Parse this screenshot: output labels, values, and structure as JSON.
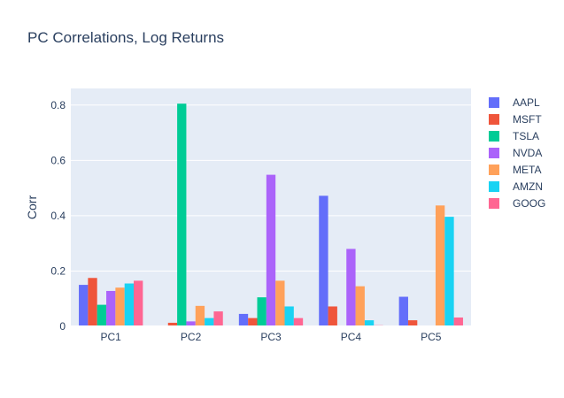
{
  "chart_data": {
    "type": "bar",
    "title": "PC Correlations, Log Returns",
    "xlabel": "",
    "ylabel": "Corr",
    "categories": [
      "PC1",
      "PC2",
      "PC3",
      "PC4",
      "PC5"
    ],
    "ylim": [
      0,
      0.86
    ],
    "yticks": [
      0,
      0.2,
      0.4,
      0.6,
      0.8
    ],
    "ytick_labels": [
      "0",
      "0.2",
      "0.4",
      "0.6",
      "0.8"
    ],
    "grid": true,
    "legend_position": "right",
    "background": "#e5ecf6",
    "series": [
      {
        "name": "AAPL",
        "color": "#636efa",
        "values": [
          0.15,
          0.002,
          0.045,
          0.472,
          0.107
        ]
      },
      {
        "name": "MSFT",
        "color": "#ef553b",
        "values": [
          0.175,
          0.013,
          0.03,
          0.072,
          0.022
        ]
      },
      {
        "name": "TSLA",
        "color": "#00cc96",
        "values": [
          0.078,
          0.805,
          0.105,
          0.001,
          0.001
        ]
      },
      {
        "name": "NVDA",
        "color": "#ab63fa",
        "values": [
          0.128,
          0.018,
          0.548,
          0.28,
          0.001
        ]
      },
      {
        "name": "META",
        "color": "#ffa15a",
        "values": [
          0.14,
          0.074,
          0.165,
          0.145,
          0.437
        ]
      },
      {
        "name": "AMZN",
        "color": "#19d3f3",
        "values": [
          0.155,
          0.03,
          0.072,
          0.022,
          0.396
        ]
      },
      {
        "name": "GOOG",
        "color": "#ff6692",
        "values": [
          0.165,
          0.054,
          0.03,
          0.004,
          0.032
        ]
      }
    ]
  }
}
